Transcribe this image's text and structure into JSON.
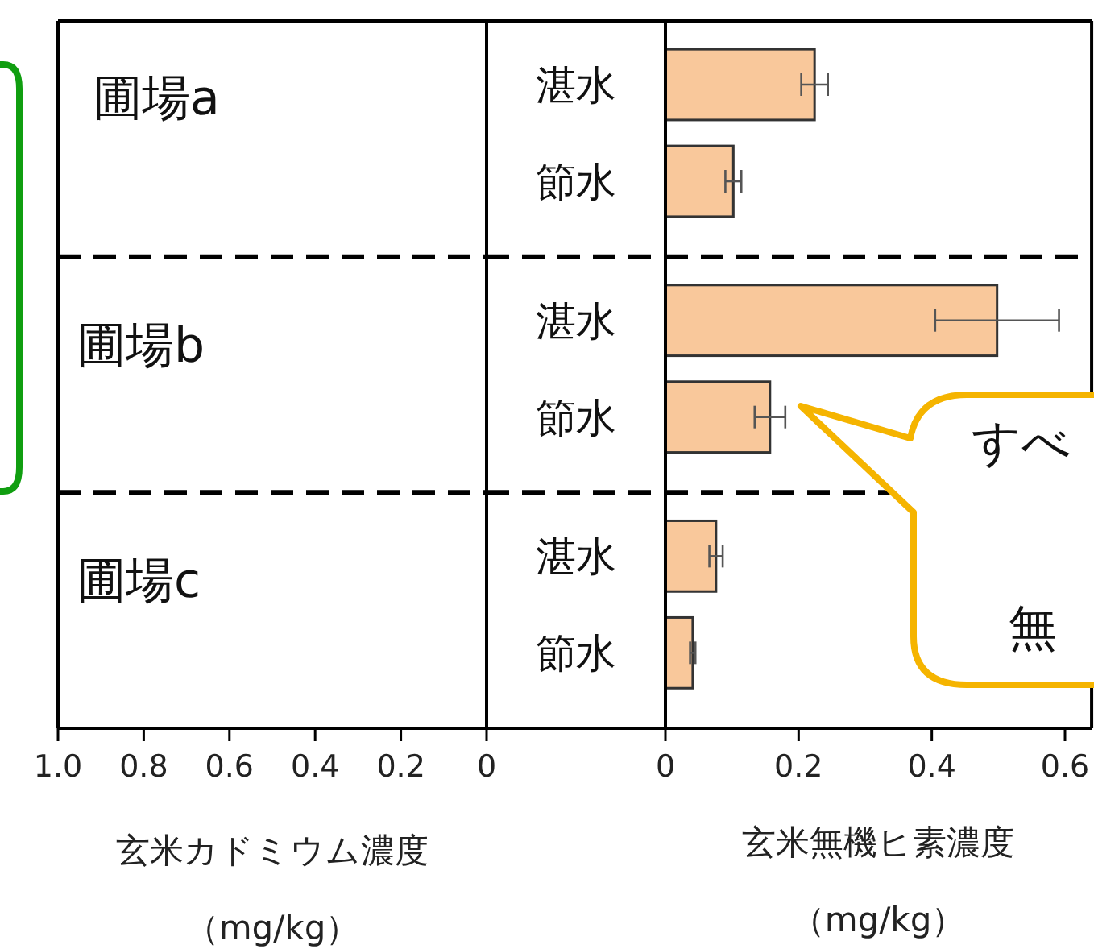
{
  "chart_data": [
    {
      "type": "bar",
      "orientation": "horizontal",
      "categories": [
        "湛水",
        "節水",
        "湛水",
        "節水",
        "湛水",
        "節水"
      ],
      "values": [
        null,
        null,
        null,
        null,
        null,
        null
      ],
      "xlim": [
        1.0,
        0
      ],
      "xticks": [
        {
          "value": 1.0,
          "label": "1.0"
        },
        0.8,
        0.6,
        0.4,
        0.2,
        0
      ],
      "xlabel": "玄米カドミウム濃度（mg/kg）",
      "annotations": [
        "圃場a",
        "圃場b",
        "圃場c"
      ]
    },
    {
      "type": "bar",
      "orientation": "horizontal",
      "categories": [
        null,
        null,
        null,
        null,
        null,
        null
      ],
      "values": [
        0.224,
        0.102,
        0.498,
        0.157,
        0.076,
        0.041
      ],
      "errors": [
        0.02,
        0.012,
        0.093,
        0.023,
        0.01,
        0.004
      ],
      "color": "#f9c89b",
      "xlim": [
        0,
        0.64
      ],
      "xticks": [
        0,
        0.2,
        0.4,
        0.6
      ],
      "xlabel": "玄米無機ヒ素濃度（mg/kg）",
      "annotations": [
        "すべ",
        "無"
      ]
    }
  ]
}
